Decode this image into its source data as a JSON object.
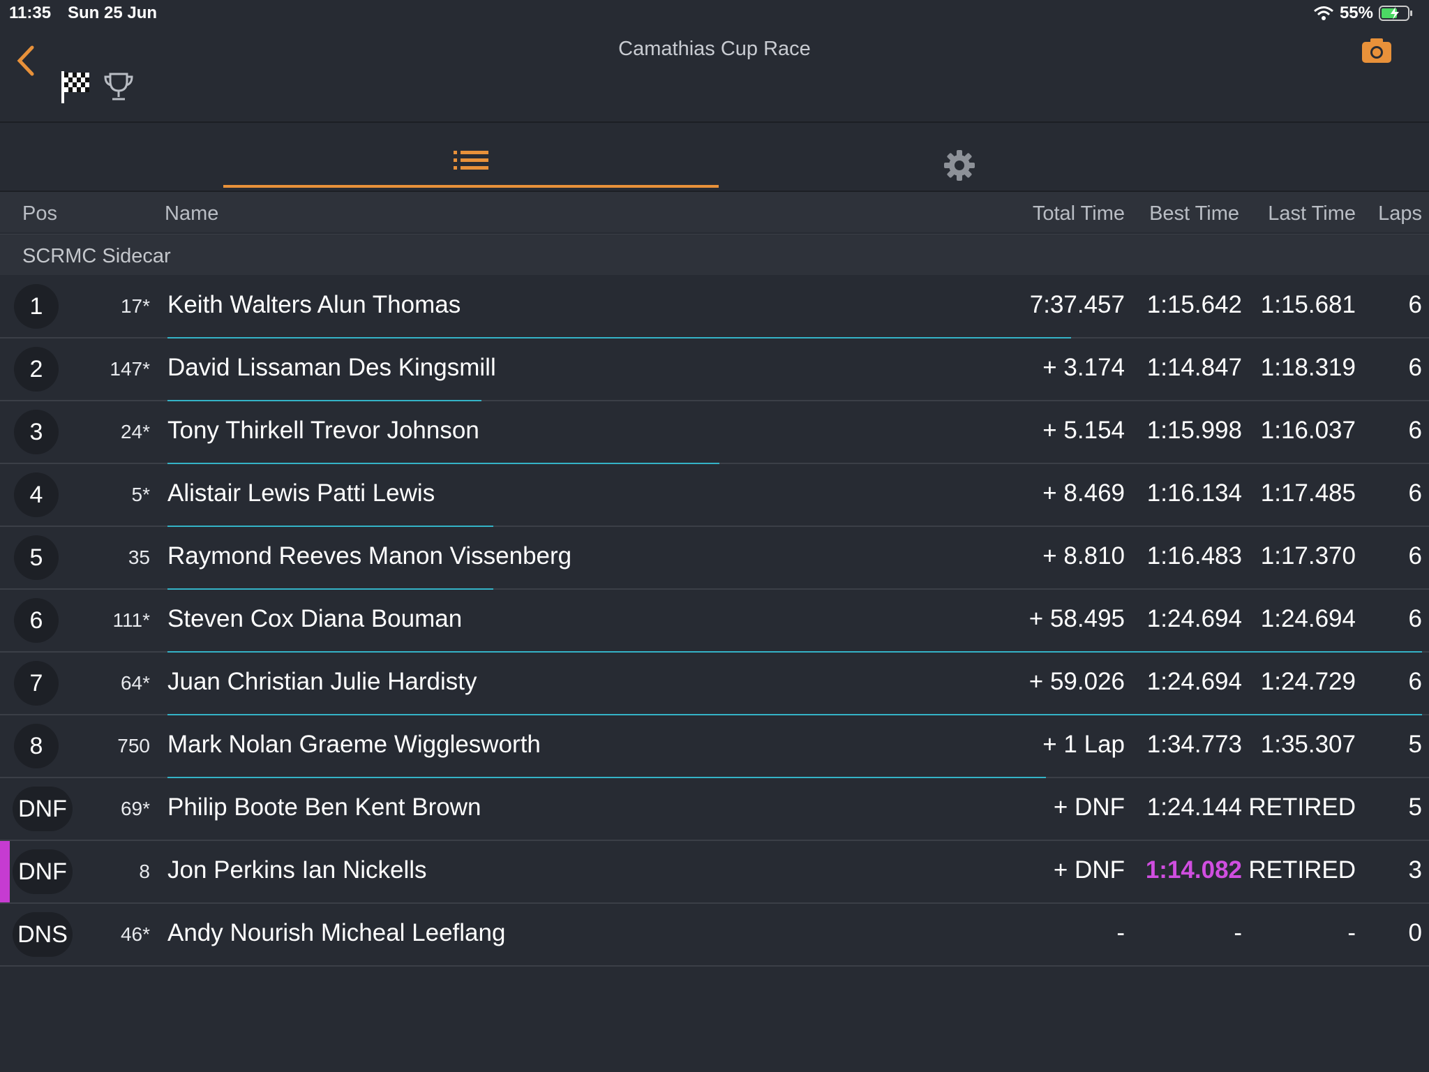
{
  "status": {
    "time": "11:35",
    "date": "Sun 25 Jun",
    "battery": "55%"
  },
  "header": {
    "title": "Camathias Cup Race"
  },
  "columns": {
    "pos": "Pos",
    "name": "Name",
    "total": "Total Time",
    "best": "Best Time",
    "last": "Last Time",
    "laps": "Laps"
  },
  "group": "SCRMC Sidecar",
  "colors": {
    "accent": "#e8913a",
    "progress": "#34b3c7",
    "fastest": "#d04ee0"
  },
  "rows": [
    {
      "pos": "1",
      "num": "17*",
      "name": "Keith Walters Alun Thomas",
      "total": "7:37.457",
      "best": "1:15.642",
      "last": "1:15.681",
      "laps": "6",
      "progress": 0.72
    },
    {
      "pos": "2",
      "num": "147*",
      "name": "David Lissaman Des Kingsmill",
      "total": "+ 3.174",
      "best": "1:14.847",
      "last": "1:18.319",
      "laps": "6",
      "progress": 0.25
    },
    {
      "pos": "3",
      "num": "24*",
      "name": "Tony Thirkell Trevor Johnson",
      "total": "+ 5.154",
      "best": "1:15.998",
      "last": "1:16.037",
      "laps": "6",
      "progress": 0.44
    },
    {
      "pos": "4",
      "num": "5*",
      "name": "Alistair Lewis Patti Lewis",
      "total": "+ 8.469",
      "best": "1:16.134",
      "last": "1:17.485",
      "laps": "6",
      "progress": 0.26
    },
    {
      "pos": "5",
      "num": "35",
      "name": "Raymond Reeves Manon Vissenberg",
      "total": "+ 8.810",
      "best": "1:16.483",
      "last": "1:17.370",
      "laps": "6",
      "progress": 0.26
    },
    {
      "pos": "6",
      "num": "111*",
      "name": "Steven Cox Diana Bouman",
      "total": "+ 58.495",
      "best": "1:24.694",
      "last": "1:24.694",
      "laps": "6",
      "progress": 1.0
    },
    {
      "pos": "7",
      "num": "64*",
      "name": "Juan Christian Julie Hardisty",
      "total": "+ 59.026",
      "best": "1:24.694",
      "last": "1:24.729",
      "laps": "6",
      "progress": 1.0
    },
    {
      "pos": "8",
      "num": "750",
      "name": "Mark Nolan Graeme Wigglesworth",
      "total": "+ 1 Lap",
      "best": "1:34.773",
      "last": "1:35.307",
      "laps": "5",
      "progress": 0.7
    },
    {
      "pos": "DNF",
      "num": "69*",
      "name": "Philip Boote Ben Kent Brown",
      "total": "+ DNF",
      "best": "1:24.144",
      "last": "RETIRED",
      "laps": "5",
      "progress": 0
    },
    {
      "pos": "DNF",
      "num": "8",
      "name": "Jon Perkins Ian Nickells",
      "total": "+ DNF",
      "best": "1:14.082",
      "last": "RETIRED",
      "laps": "3",
      "progress": 0,
      "fastest": true
    },
    {
      "pos": "DNS",
      "num": "46*",
      "name": "Andy Nourish Micheal Leeflang",
      "total": "-",
      "best": "-",
      "last": "-",
      "laps": "0",
      "progress": 0
    }
  ]
}
